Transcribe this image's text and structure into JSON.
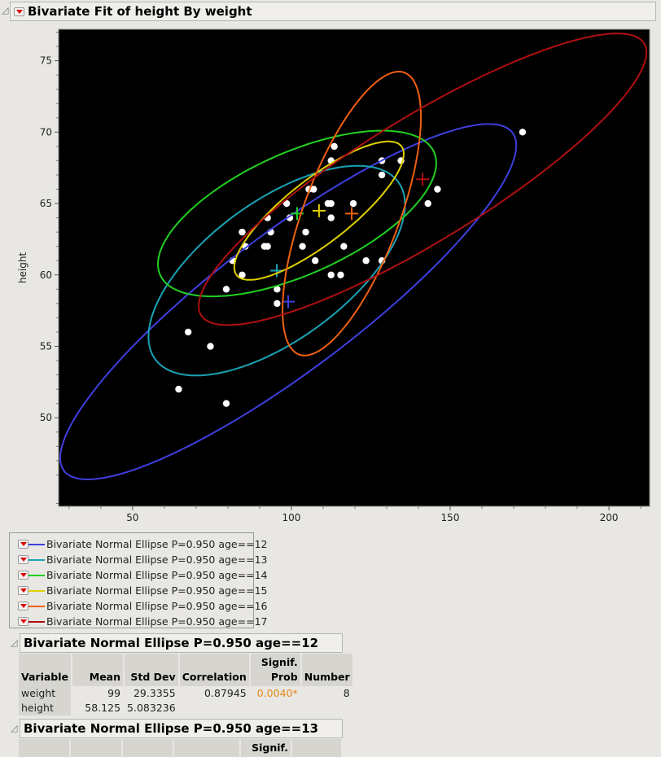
{
  "report": {
    "title": "Bivariate Fit of height By weight"
  },
  "chart_data": {
    "type": "scatter",
    "xlabel": "weight",
    "ylabel": "height",
    "xlim": [
      26.7,
      212.8
    ],
    "ylim": [
      43.8,
      77.2
    ],
    "xticks": [
      50,
      100,
      150,
      200
    ],
    "yticks": [
      50,
      55,
      60,
      65,
      70,
      75
    ],
    "grid": false,
    "background": "#000000",
    "point_color": "#ffffff",
    "points": [
      [
        172.8,
        70
      ],
      [
        113.5,
        69
      ],
      [
        112.5,
        68
      ],
      [
        128.5,
        68
      ],
      [
        134.5,
        68
      ],
      [
        128.5,
        67
      ],
      [
        105.5,
        66
      ],
      [
        107,
        66
      ],
      [
        146,
        66
      ],
      [
        98.5,
        65
      ],
      [
        111.5,
        65
      ],
      [
        112.5,
        65
      ],
      [
        119.5,
        65
      ],
      [
        143,
        65
      ],
      [
        92.5,
        64
      ],
      [
        99.5,
        64
      ],
      [
        112.5,
        64
      ],
      [
        84.5,
        63
      ],
      [
        93.5,
        63
      ],
      [
        104.5,
        63
      ],
      [
        85.5,
        62
      ],
      [
        91.5,
        62
      ],
      [
        92.5,
        62
      ],
      [
        103.5,
        62
      ],
      [
        116.5,
        62
      ],
      [
        81.5,
        61
      ],
      [
        107.5,
        61
      ],
      [
        123.5,
        61
      ],
      [
        128.5,
        61
      ],
      [
        84.5,
        60
      ],
      [
        112.5,
        60
      ],
      [
        115.5,
        60
      ],
      [
        79.5,
        59
      ],
      [
        95.5,
        59
      ],
      [
        95.5,
        58
      ],
      [
        67.5,
        56
      ],
      [
        74.5,
        55
      ],
      [
        64.5,
        52
      ],
      [
        79.5,
        51
      ]
    ],
    "ellipses": [
      {
        "name": "Bivariate Normal Ellipse P=0.950 age==12",
        "color": "#3f3fe0",
        "mean": [
          99,
          58.125
        ],
        "sd": [
          29.3355,
          5.083236
        ],
        "r": 0.87945
      },
      {
        "name": "Bivariate Normal Ellipse P=0.950 age==13",
        "color": "#1aa3b5",
        "mean": [
          95.4,
          60.3
        ],
        "sd": [
          16.5,
          3.0
        ],
        "r": 0.63
      },
      {
        "name": "Bivariate Normal Ellipse P=0.950 age==14",
        "color": "#22d022",
        "mean": [
          101.8,
          64.3
        ],
        "sd": [
          17.9,
          2.37
        ],
        "r": 0.61
      },
      {
        "name": "Bivariate Normal Ellipse P=0.950 age==15",
        "color": "#e0d000",
        "mean": [
          108.7,
          64.5
        ],
        "sd": [
          10.9,
          1.98
        ],
        "r": 0.82
      },
      {
        "name": "Bivariate Normal Ellipse P=0.950 age==16",
        "color": "#f06010",
        "mean": [
          119,
          64.3
        ],
        "sd": [
          8.9,
          4.06
        ],
        "r": 0.68
      },
      {
        "name": "Bivariate Normal Ellipse P=0.950 age==17",
        "color": "#b01010",
        "mean": [
          141.3,
          66.7
        ],
        "sd": [
          28.8,
          4.17
        ],
        "r": 0.87
      }
    ],
    "p": 0.95
  },
  "sections": [
    {
      "title": "Bivariate Normal Ellipse P=0.950 age==12",
      "headers": [
        "Variable",
        "Mean",
        "Std Dev",
        "Correlation",
        "Signif.\nProb",
        "Number"
      ],
      "rows": [
        [
          "weight",
          "99",
          "29.3355",
          "0.87945",
          "0.0040*",
          "8"
        ],
        [
          "height",
          "58.125",
          "5.083236",
          "",
          "",
          ""
        ]
      ],
      "signif_color": "#e8891a"
    },
    {
      "title": "Bivariate Normal Ellipse P=0.950 age==13",
      "headers_visible": [
        "Signif."
      ]
    }
  ]
}
